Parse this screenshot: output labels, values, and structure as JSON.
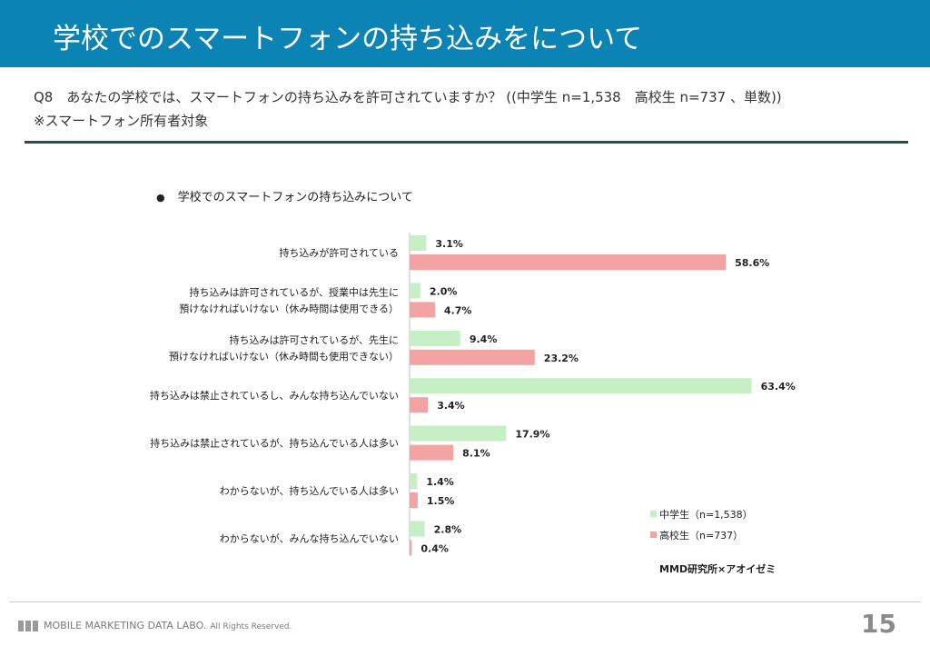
{
  "header": {
    "title": "学校でのスマートフォンの持ち込みをについて"
  },
  "question": "Q8　あなたの学校では、スマートフォンの持ち込みを許可されていますか？ ((中学生 n=1,538　高校生 n=737 、単数))",
  "note": "※スマートフォン所有者対象",
  "chart_title": "学校でのスマートフォンの持ち込みについて",
  "chart_data": {
    "type": "bar",
    "orientation": "horizontal",
    "categories": [
      [
        "持ち込みが許可されている"
      ],
      [
        "持ち込みは許可されているが、授業中は先生に",
        "預けなければいけない（休み時間は使用できる）"
      ],
      [
        "持ち込みは許可されているが、先生に",
        "預けなければいけない（休み時間も使用できない）"
      ],
      [
        "持ち込みは禁止されているし、みんな持ち込んでいない"
      ],
      [
        "持ち込みは禁止されているが、持ち込んでいる人は多い"
      ],
      [
        "わからないが、持ち込んでいる人は多い"
      ],
      [
        "わからないが、みんな持ち込んでいない"
      ]
    ],
    "series": [
      {
        "name": "中学生（n=1,538）",
        "color": "#c6efc6",
        "values": [
          3.1,
          2.0,
          9.4,
          63.4,
          17.9,
          1.4,
          2.8
        ]
      },
      {
        "name": "高校生（n=737）",
        "color": "#f4a3a3",
        "values": [
          58.6,
          4.7,
          23.2,
          3.4,
          8.1,
          1.5,
          0.4
        ]
      }
    ],
    "value_suffix": "%",
    "legend_position": "bottom-right",
    "grid": false
  },
  "source": "MMD研究所×アオイゼミ",
  "footer": {
    "company": "MOBILE MARKETING DATA LABO.",
    "rights": "All Rights Reserved."
  },
  "page_number": "15"
}
